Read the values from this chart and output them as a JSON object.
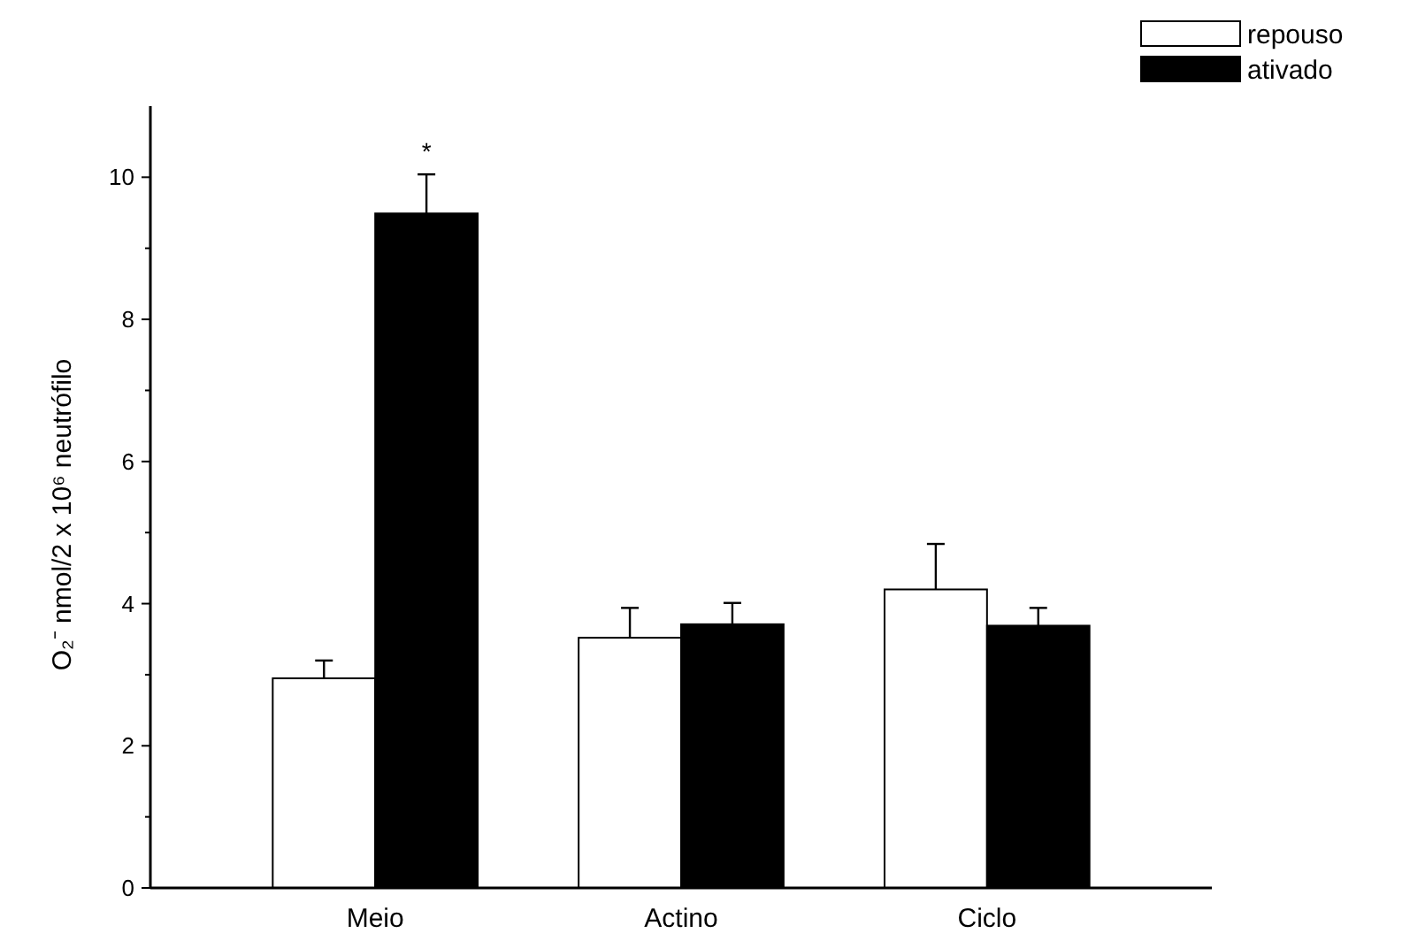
{
  "chart_data": {
    "type": "bar",
    "ylabel": "O₂⁻ nmol/2 x 10⁶ neutrófilo",
    "categories": [
      "Meio",
      "Actino",
      "Ciclo"
    ],
    "series": [
      {
        "name": "repouso",
        "color": "#ffffff",
        "values": [
          2.95,
          3.52,
          4.2
        ],
        "errors": [
          0.25,
          0.42,
          0.64
        ]
      },
      {
        "name": "ativado",
        "color": "#000000",
        "values": [
          9.49,
          3.71,
          3.69
        ],
        "errors": [
          0.55,
          0.3,
          0.25
        ]
      }
    ],
    "ylim": [
      0,
      11
    ],
    "yticks": [
      0,
      {
        "value": 1,
        "label": null
      },
      2,
      {
        "value": 3,
        "label": null
      },
      4,
      {
        "value": 5,
        "label": null
      },
      6,
      {
        "value": 7,
        "label": null
      },
      8,
      {
        "value": 9,
        "label": null
      },
      10
    ],
    "annotations": [
      "*"
    ],
    "legend": "top right",
    "grid": false
  }
}
